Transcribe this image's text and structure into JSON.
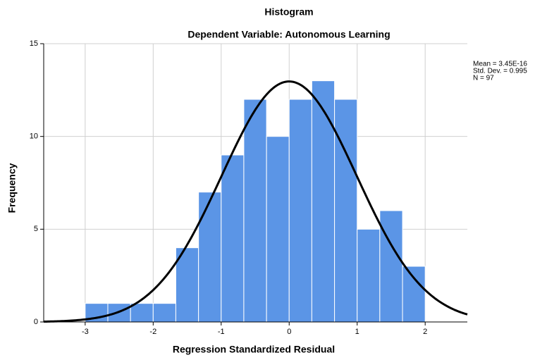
{
  "chart_data": {
    "type": "histogram",
    "title": "Histogram",
    "subtitle": "Dependent Variable: Autonomous Learning",
    "x_label": "Regression Standardized Residual",
    "y_label": "Frequency",
    "bins": [
      -3,
      -2.667,
      -2.333,
      -2,
      -1.667,
      -1.333,
      -1,
      -0.667,
      -0.333,
      0,
      0.333,
      0.667,
      1,
      1.333,
      1.667,
      2
    ],
    "values": [
      1,
      1,
      1,
      1,
      4,
      7,
      9,
      12,
      10,
      12,
      13,
      12,
      5,
      6,
      3
    ],
    "color": "#5b95e6",
    "xlim": [
      -3.61,
      2.62
    ],
    "ylim": [
      0,
      15
    ],
    "xticks": [
      -3,
      -2,
      -1,
      0,
      1,
      2
    ],
    "yticks": [
      0,
      5,
      10,
      15
    ],
    "grid": true,
    "annotations": [
      "Mean = 3.45E-16",
      "Std. Dev. = 0.995",
      "N = 97"
    ],
    "normal_curve": {
      "mean": 3.45e-16,
      "std": 0.995,
      "n": 97
    }
  }
}
